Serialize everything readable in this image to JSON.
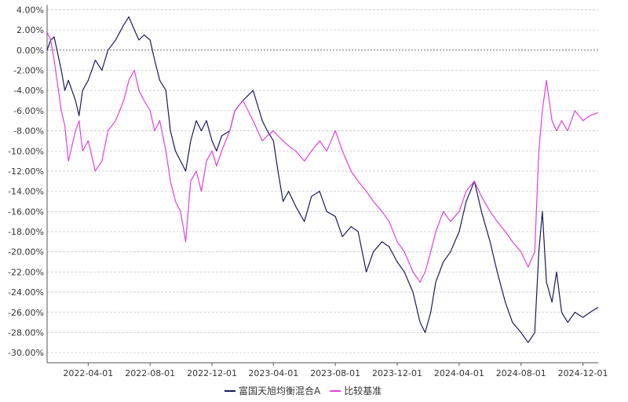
{
  "chart_data": {
    "type": "line",
    "title": "",
    "xlabel": "",
    "ylabel": "",
    "ylim": [
      -0.31,
      0.045
    ],
    "y_ticks": [
      "4.00%",
      "2.00%",
      "0.00%",
      "-2.00%",
      "-4.00%",
      "-6.00%",
      "-8.00%",
      "-10.00%",
      "-12.00%",
      "-14.00%",
      "-16.00%",
      "-18.00%",
      "-20.00%",
      "-22.00%",
      "-24.00%",
      "-26.00%",
      "-28.00%",
      "-30.00%"
    ],
    "y_tick_values": [
      0.04,
      0.02,
      0,
      -0.02,
      -0.04,
      -0.06,
      -0.08,
      -0.1,
      -0.12,
      -0.14,
      -0.16,
      -0.18,
      -0.2,
      -0.22,
      -0.24,
      -0.26,
      -0.28,
      -0.3
    ],
    "x_ticks": [
      "2022-04-01",
      "2022-08-01",
      "2022-12-01",
      "2023-04-01",
      "2023-08-01",
      "2023-12-01",
      "2024-04-01",
      "2024-08-01",
      "2024-12-01"
    ],
    "x_range": [
      "2022-01-10",
      "2024-12-31"
    ],
    "grid": true,
    "legend": "bottom-center",
    "series": [
      {
        "name": "富国天旭均衡混合A",
        "color": "#1a1a5e",
        "points": [
          [
            "2022-01-10",
            0.0
          ],
          [
            "2022-01-17",
            0.01
          ],
          [
            "2022-01-24",
            0.013
          ],
          [
            "2022-02-07",
            -0.02
          ],
          [
            "2022-02-14",
            -0.04
          ],
          [
            "2022-02-21",
            -0.03
          ],
          [
            "2022-03-07",
            -0.05
          ],
          [
            "2022-03-14",
            -0.065
          ],
          [
            "2022-03-21",
            -0.04
          ],
          [
            "2022-04-01",
            -0.03
          ],
          [
            "2022-04-15",
            -0.01
          ],
          [
            "2022-04-28",
            -0.02
          ],
          [
            "2022-05-10",
            0.0
          ],
          [
            "2022-05-25",
            0.01
          ],
          [
            "2022-06-10",
            0.025
          ],
          [
            "2022-06-20",
            0.033
          ],
          [
            "2022-07-01",
            0.02
          ],
          [
            "2022-07-10",
            0.01
          ],
          [
            "2022-07-20",
            0.015
          ],
          [
            "2022-08-01",
            0.01
          ],
          [
            "2022-08-10",
            -0.01
          ],
          [
            "2022-08-20",
            -0.03
          ],
          [
            "2022-09-01",
            -0.04
          ],
          [
            "2022-09-10",
            -0.08
          ],
          [
            "2022-09-20",
            -0.1
          ],
          [
            "2022-09-30",
            -0.11
          ],
          [
            "2022-10-10",
            -0.12
          ],
          [
            "2022-10-20",
            -0.09
          ],
          [
            "2022-10-31",
            -0.07
          ],
          [
            "2022-11-10",
            -0.08
          ],
          [
            "2022-11-20",
            -0.07
          ],
          [
            "2022-12-01",
            -0.09
          ],
          [
            "2022-12-10",
            -0.1
          ],
          [
            "2022-12-20",
            -0.085
          ],
          [
            "2023-01-05",
            -0.08
          ],
          [
            "2023-01-15",
            -0.06
          ],
          [
            "2023-01-31",
            -0.05
          ],
          [
            "2023-02-10",
            -0.045
          ],
          [
            "2023-02-20",
            -0.04
          ],
          [
            "2023-03-01",
            -0.055
          ],
          [
            "2023-03-10",
            -0.07
          ],
          [
            "2023-03-20",
            -0.08
          ],
          [
            "2023-04-01",
            -0.09
          ],
          [
            "2023-04-10",
            -0.12
          ],
          [
            "2023-04-20",
            -0.15
          ],
          [
            "2023-05-01",
            -0.14
          ],
          [
            "2023-05-15",
            -0.155
          ],
          [
            "2023-06-01",
            -0.17
          ],
          [
            "2023-06-15",
            -0.145
          ],
          [
            "2023-07-01",
            -0.14
          ],
          [
            "2023-07-15",
            -0.16
          ],
          [
            "2023-08-01",
            -0.165
          ],
          [
            "2023-08-15",
            -0.185
          ],
          [
            "2023-09-01",
            -0.175
          ],
          [
            "2023-09-15",
            -0.18
          ],
          [
            "2023-10-01",
            -0.22
          ],
          [
            "2023-10-15",
            -0.2
          ],
          [
            "2023-11-01",
            -0.19
          ],
          [
            "2023-11-15",
            -0.195
          ],
          [
            "2023-12-01",
            -0.21
          ],
          [
            "2023-12-15",
            -0.22
          ],
          [
            "2024-01-01",
            -0.24
          ],
          [
            "2024-01-15",
            -0.27
          ],
          [
            "2024-01-25",
            -0.28
          ],
          [
            "2024-02-05",
            -0.26
          ],
          [
            "2024-02-15",
            -0.23
          ],
          [
            "2024-03-01",
            -0.21
          ],
          [
            "2024-03-15",
            -0.2
          ],
          [
            "2024-04-01",
            -0.18
          ],
          [
            "2024-04-15",
            -0.15
          ],
          [
            "2024-05-01",
            -0.13
          ],
          [
            "2024-05-15",
            -0.16
          ],
          [
            "2024-06-01",
            -0.19
          ],
          [
            "2024-06-15",
            -0.22
          ],
          [
            "2024-07-01",
            -0.25
          ],
          [
            "2024-07-15",
            -0.27
          ],
          [
            "2024-08-01",
            -0.28
          ],
          [
            "2024-08-15",
            -0.29
          ],
          [
            "2024-08-28",
            -0.28
          ],
          [
            "2024-09-05",
            -0.2
          ],
          [
            "2024-09-12",
            -0.16
          ],
          [
            "2024-09-20",
            -0.23
          ],
          [
            "2024-10-01",
            -0.25
          ],
          [
            "2024-10-10",
            -0.22
          ],
          [
            "2024-10-20",
            -0.26
          ],
          [
            "2024-11-01",
            -0.27
          ],
          [
            "2024-11-15",
            -0.26
          ],
          [
            "2024-12-01",
            -0.265
          ],
          [
            "2024-12-15",
            -0.26
          ],
          [
            "2024-12-31",
            -0.255
          ]
        ]
      },
      {
        "name": "比较基准",
        "color": "#e040e0",
        "points": [
          [
            "2022-01-10",
            0.018
          ],
          [
            "2022-01-17",
            0.01
          ],
          [
            "2022-01-24",
            -0.01
          ],
          [
            "2022-02-07",
            -0.06
          ],
          [
            "2022-02-14",
            -0.075
          ],
          [
            "2022-02-21",
            -0.11
          ],
          [
            "2022-03-07",
            -0.08
          ],
          [
            "2022-03-14",
            -0.07
          ],
          [
            "2022-03-21",
            -0.1
          ],
          [
            "2022-04-01",
            -0.09
          ],
          [
            "2022-04-15",
            -0.12
          ],
          [
            "2022-04-28",
            -0.11
          ],
          [
            "2022-05-10",
            -0.08
          ],
          [
            "2022-05-25",
            -0.07
          ],
          [
            "2022-06-10",
            -0.05
          ],
          [
            "2022-06-20",
            -0.03
          ],
          [
            "2022-07-01",
            -0.02
          ],
          [
            "2022-07-10",
            -0.04
          ],
          [
            "2022-07-20",
            -0.05
          ],
          [
            "2022-08-01",
            -0.06
          ],
          [
            "2022-08-10",
            -0.08
          ],
          [
            "2022-08-20",
            -0.07
          ],
          [
            "2022-09-01",
            -0.1
          ],
          [
            "2022-09-10",
            -0.13
          ],
          [
            "2022-09-20",
            -0.15
          ],
          [
            "2022-09-30",
            -0.16
          ],
          [
            "2022-10-10",
            -0.19
          ],
          [
            "2022-10-20",
            -0.13
          ],
          [
            "2022-10-31",
            -0.12
          ],
          [
            "2022-11-10",
            -0.14
          ],
          [
            "2022-11-20",
            -0.11
          ],
          [
            "2022-12-01",
            -0.1
          ],
          [
            "2022-12-10",
            -0.115
          ],
          [
            "2022-12-20",
            -0.1
          ],
          [
            "2023-01-05",
            -0.08
          ],
          [
            "2023-01-15",
            -0.06
          ],
          [
            "2023-01-31",
            -0.05
          ],
          [
            "2023-02-10",
            -0.06
          ],
          [
            "2023-02-20",
            -0.07
          ],
          [
            "2023-03-01",
            -0.08
          ],
          [
            "2023-03-10",
            -0.09
          ],
          [
            "2023-03-20",
            -0.085
          ],
          [
            "2023-04-01",
            -0.08
          ],
          [
            "2023-04-10",
            -0.085
          ],
          [
            "2023-04-20",
            -0.09
          ],
          [
            "2023-05-01",
            -0.095
          ],
          [
            "2023-05-15",
            -0.1
          ],
          [
            "2023-06-01",
            -0.11
          ],
          [
            "2023-06-15",
            -0.1
          ],
          [
            "2023-07-01",
            -0.09
          ],
          [
            "2023-07-15",
            -0.1
          ],
          [
            "2023-08-01",
            -0.08
          ],
          [
            "2023-08-15",
            -0.1
          ],
          [
            "2023-09-01",
            -0.12
          ],
          [
            "2023-09-15",
            -0.13
          ],
          [
            "2023-10-01",
            -0.14
          ],
          [
            "2023-10-15",
            -0.15
          ],
          [
            "2023-11-01",
            -0.16
          ],
          [
            "2023-11-15",
            -0.17
          ],
          [
            "2023-12-01",
            -0.19
          ],
          [
            "2023-12-15",
            -0.2
          ],
          [
            "2024-01-01",
            -0.22
          ],
          [
            "2024-01-15",
            -0.23
          ],
          [
            "2024-01-25",
            -0.22
          ],
          [
            "2024-02-05",
            -0.2
          ],
          [
            "2024-02-15",
            -0.18
          ],
          [
            "2024-03-01",
            -0.16
          ],
          [
            "2024-03-15",
            -0.17
          ],
          [
            "2024-04-01",
            -0.16
          ],
          [
            "2024-04-15",
            -0.14
          ],
          [
            "2024-05-01",
            -0.13
          ],
          [
            "2024-05-15",
            -0.145
          ],
          [
            "2024-06-01",
            -0.16
          ],
          [
            "2024-06-15",
            -0.17
          ],
          [
            "2024-07-01",
            -0.18
          ],
          [
            "2024-07-15",
            -0.19
          ],
          [
            "2024-08-01",
            -0.2
          ],
          [
            "2024-08-15",
            -0.215
          ],
          [
            "2024-08-28",
            -0.2
          ],
          [
            "2024-09-05",
            -0.1
          ],
          [
            "2024-09-12",
            -0.06
          ],
          [
            "2024-09-20",
            -0.03
          ],
          [
            "2024-10-01",
            -0.07
          ],
          [
            "2024-10-10",
            -0.08
          ],
          [
            "2024-10-20",
            -0.07
          ],
          [
            "2024-11-01",
            -0.08
          ],
          [
            "2024-11-15",
            -0.06
          ],
          [
            "2024-12-01",
            -0.07
          ],
          [
            "2024-12-15",
            -0.065
          ],
          [
            "2024-12-31",
            -0.062
          ]
        ]
      }
    ]
  }
}
